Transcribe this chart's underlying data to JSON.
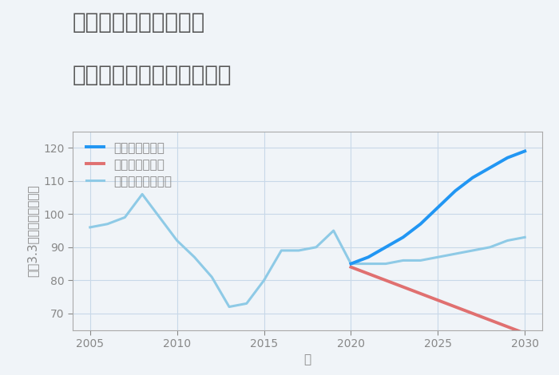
{
  "title_line1": "愛知県常滑市西阿野の",
  "title_line2": "中古マンションの価格推移",
  "xlabel": "年",
  "ylabel": "坪（3.3㎡）単価（万円）",
  "background_color": "#f0f4f8",
  "plot_bg_color": "#f0f4f8",
  "historical": {
    "years": [
      2005,
      2006,
      2007,
      2008,
      2009,
      2010,
      2011,
      2012,
      2013,
      2014,
      2015,
      2016,
      2017,
      2018,
      2019,
      2020
    ],
    "values": [
      96,
      97,
      99,
      106,
      99,
      92,
      87,
      81,
      72,
      73,
      80,
      89,
      89,
      90,
      95,
      85
    ],
    "color": "#8ecae6",
    "linewidth": 2.2
  },
  "good": {
    "years": [
      2020,
      2021,
      2022,
      2023,
      2024,
      2025,
      2026,
      2027,
      2028,
      2029,
      2030
    ],
    "values": [
      85,
      87,
      90,
      93,
      97,
      102,
      107,
      111,
      114,
      117,
      119
    ],
    "color": "#2196f3",
    "linewidth": 2.8,
    "label": "グッドシナリオ"
  },
  "bad": {
    "years": [
      2020,
      2021,
      2022,
      2023,
      2024,
      2025,
      2026,
      2027,
      2028,
      2029,
      2030
    ],
    "values": [
      84,
      82,
      80,
      78,
      76,
      74,
      72,
      70,
      68,
      66,
      64
    ],
    "color": "#e07070",
    "linewidth": 2.8,
    "label": "バッドシナリオ"
  },
  "normal": {
    "years": [
      2020,
      2021,
      2022,
      2023,
      2024,
      2025,
      2026,
      2027,
      2028,
      2029,
      2030
    ],
    "values": [
      85,
      85,
      85,
      86,
      86,
      87,
      88,
      89,
      90,
      92,
      93
    ],
    "color": "#8ecae6",
    "linewidth": 2.2,
    "label": "ノーマルシナリオ"
  },
  "ylim": [
    65,
    125
  ],
  "yticks": [
    70,
    80,
    90,
    100,
    110,
    120
  ],
  "xlim": [
    2004,
    2031
  ],
  "xticks": [
    2005,
    2010,
    2015,
    2020,
    2025,
    2030
  ],
  "title_fontsize": 20,
  "axis_label_fontsize": 11,
  "tick_fontsize": 10,
  "legend_fontsize": 11,
  "title_color": "#555555",
  "axis_color": "#888888",
  "grid_color": "#c8d8e8",
  "spine_color": "#aaaaaa"
}
